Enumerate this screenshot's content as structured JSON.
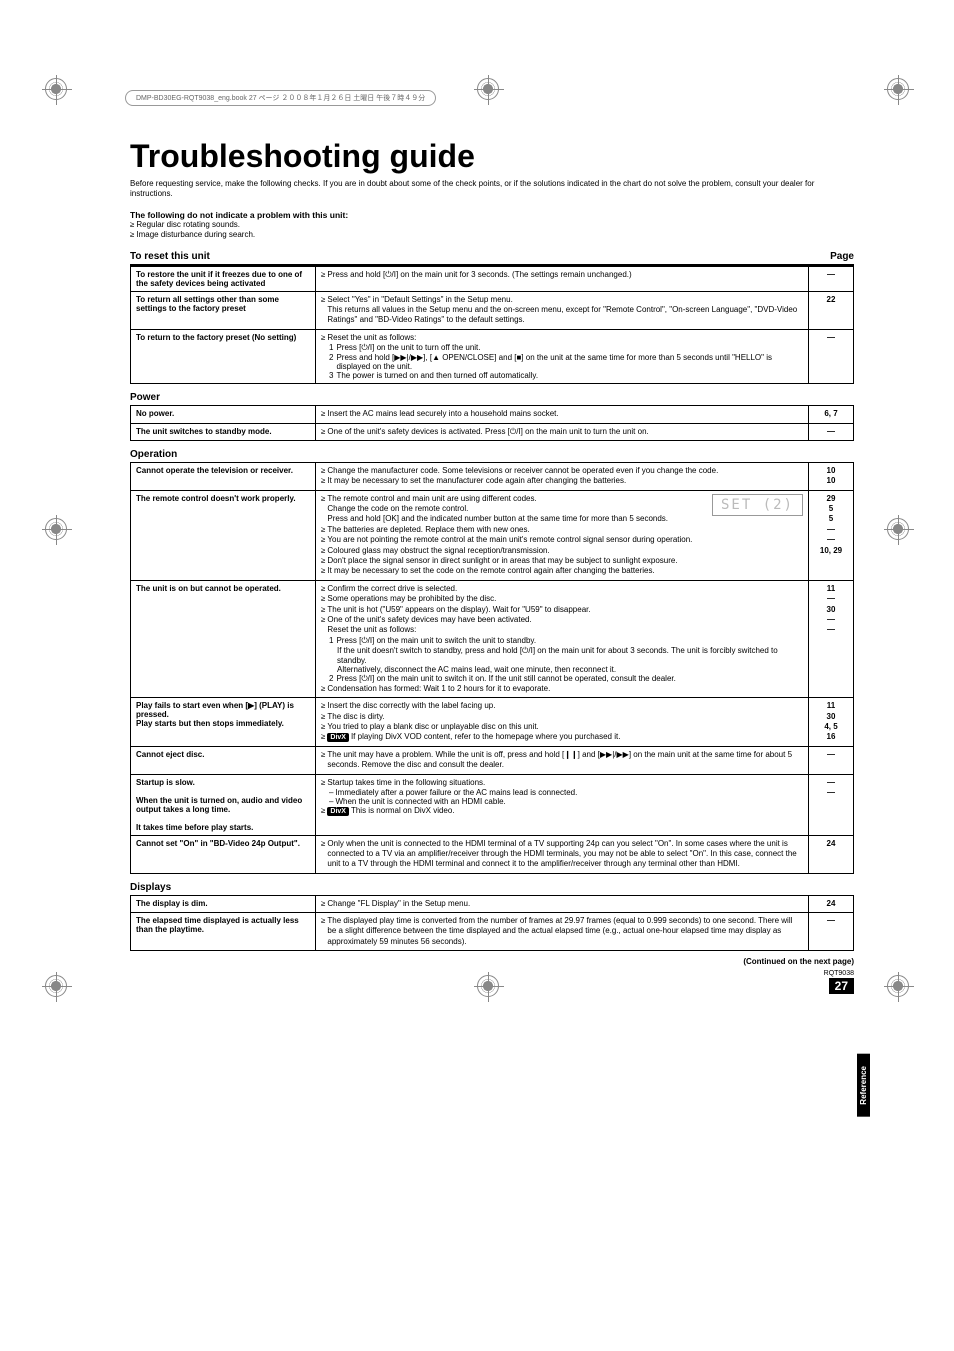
{
  "book_header": "DMP-BD30EG-RQT9038_eng.book 27 ページ ２００８年１月２６日 土曜日 午後７時４９分",
  "title": "Troubleshooting guide",
  "intro": "Before requesting service, make the following checks. If you are in doubt about some of the check points, or if the solutions indicated in the chart do not solve the problem, consult your dealer for instructions.",
  "sub_heading": "The following do not indicate a problem with this unit:",
  "sub_items": [
    "Regular disc rotating sounds.",
    "Image disturbance during search."
  ],
  "section_reset": {
    "title": "To reset this unit",
    "page_label": "Page"
  },
  "reset_rows": [
    {
      "label": "To restore the unit if it freezes due to one of the safety devices being activated",
      "content": [
        {
          "type": "bullet",
          "text": "Press and hold [⏻/I] on the main unit for 3 seconds. (The settings remain unchanged.)"
        }
      ],
      "pages": [
        "—"
      ]
    },
    {
      "label": "To return all settings other than some settings to the factory preset",
      "content": [
        {
          "type": "bullet",
          "text": "Select \"Yes\" in \"Default Settings\" in the Setup menu.\nThis returns all values in the Setup menu and the on-screen menu, except for \"Remote Control\", \"On-screen Language\", \"DVD-Video Ratings\" and \"BD-Video Ratings\" to the default settings."
        }
      ],
      "pages": [
        "22"
      ]
    },
    {
      "label": "To return to the factory preset (No setting)",
      "content": [
        {
          "type": "bullet",
          "text": "Reset the unit as follows:"
        },
        {
          "type": "num",
          "n": "1",
          "text": "Press [⏻/I] on the unit to turn off the unit."
        },
        {
          "type": "num",
          "n": "2",
          "text": "Press and hold [▶▶|/▶▶], [▲ OPEN/CLOSE] and [■] on the unit at the same time for more than 5 seconds until \"HELLO\" is displayed on the unit."
        },
        {
          "type": "num",
          "n": "3",
          "text": "The power is turned on and then turned off automatically."
        }
      ],
      "pages": [
        "—"
      ]
    }
  ],
  "section_power": "Power",
  "power_rows": [
    {
      "label": "No power.",
      "content": [
        {
          "type": "bullet",
          "text": "Insert the AC mains lead securely into a household mains socket."
        }
      ],
      "pages": [
        "6, 7"
      ]
    },
    {
      "label": "The unit switches to standby mode.",
      "content": [
        {
          "type": "bullet",
          "text": "One of the unit's safety devices is activated. Press [⏻/I] on the main unit to turn the unit on."
        }
      ],
      "pages": [
        "—"
      ]
    }
  ],
  "section_operation": "Operation",
  "op_rows": [
    {
      "label": "Cannot operate the television or receiver.",
      "content": [
        {
          "type": "bullet",
          "text": "Change the manufacturer code. Some televisions or receiver cannot be operated even if you change the code."
        },
        {
          "type": "bullet",
          "text": "It may be necessary to set the manufacturer code again after changing the batteries."
        }
      ],
      "pages": [
        "10",
        "10"
      ]
    },
    {
      "label": "The remote control doesn't work properly.",
      "set_display": "SET (2)",
      "content": [
        {
          "type": "bullet",
          "text": "The remote control and main unit are using different codes.\nChange the code on the remote control.\nPress and hold [OK] and the indicated number button at the same time for more than 5 seconds."
        },
        {
          "type": "bullet",
          "text": "The batteries are depleted. Replace them with new ones."
        },
        {
          "type": "bullet",
          "text": "You are not pointing the remote control at the main unit's remote control signal sensor during operation."
        },
        {
          "type": "bullet",
          "text": "Coloured glass may obstruct the signal reception/transmission."
        },
        {
          "type": "bullet",
          "text": "Don't place the signal sensor in direct sunlight or in areas that may be subject to sunlight exposure."
        },
        {
          "type": "bullet",
          "text": "It may be necessary to set the code on the remote control again after changing the batteries."
        }
      ],
      "pages": [
        "29",
        "5",
        "5",
        "—",
        "—",
        "10, 29"
      ]
    },
    {
      "label": "The unit is on but cannot be operated.",
      "content": [
        {
          "type": "bullet",
          "text": "Confirm the correct drive is selected."
        },
        {
          "type": "bullet",
          "text": "Some operations may be prohibited by the disc."
        },
        {
          "type": "bullet",
          "text": "The unit is hot (\"U59\" appears on the display). Wait for \"U59\" to disappear."
        },
        {
          "type": "bullet",
          "text": "One of the unit's safety devices may have been activated.\nReset the unit as follows:"
        },
        {
          "type": "num",
          "n": "1",
          "text": "Press [⏻/I] on the main unit to switch the unit to standby."
        },
        {
          "type": "indent",
          "text": "If the unit doesn't switch to standby, press and hold [⏻/I] on the main unit for about 3 seconds. The unit is forcibly switched to standby."
        },
        {
          "type": "indent",
          "text": "Alternatively, disconnect the AC mains lead, wait one minute, then reconnect it."
        },
        {
          "type": "num",
          "n": "2",
          "text": "Press [⏻/I] on the main unit to switch it on. If the unit still cannot be operated, consult the dealer."
        },
        {
          "type": "bullet",
          "text": "Condensation has formed: Wait 1 to 2 hours for it to evaporate."
        }
      ],
      "pages": [
        "11",
        "—",
        "30",
        "—",
        "",
        "",
        "",
        "",
        "—"
      ]
    },
    {
      "label": "Play fails to start even when [▶] (PLAY) is pressed.\nPlay starts but then stops immediately.",
      "content": [
        {
          "type": "bullet",
          "text": "Insert the disc correctly with the label facing up."
        },
        {
          "type": "bullet",
          "text": "The disc is dirty."
        },
        {
          "type": "bullet",
          "text": "You tried to play a blank disc or unplayable disc on this unit."
        },
        {
          "type": "divx",
          "text": "If playing DivX VOD content, refer to the homepage where you purchased it."
        }
      ],
      "pages": [
        "11",
        "30",
        "4, 5",
        "16"
      ]
    },
    {
      "label": "Cannot eject disc.",
      "content": [
        {
          "type": "bullet",
          "text": "The unit may have a problem. While the unit is off, press and hold [❙❙] and [▶▶|/▶▶] on the main unit at the same time for about 5 seconds. Remove the disc and consult the dealer."
        }
      ],
      "pages": [
        "—"
      ]
    },
    {
      "label": "Startup is slow.\n\nWhen the unit is turned on, audio and video output takes a long time.\n\nIt takes time before play starts.",
      "content": [
        {
          "type": "bullet",
          "text": "Startup takes time in the following situations."
        },
        {
          "type": "dash",
          "text": "Immediately after a power failure or the AC mains lead is connected."
        },
        {
          "type": "dash",
          "text": "When the unit is connected with an HDMI cable."
        },
        {
          "type": "divx",
          "text": "This is normal on DivX video."
        }
      ],
      "pages": [
        "—",
        "",
        "",
        "—"
      ]
    },
    {
      "label": "Cannot set \"On\" in \"BD-Video 24p Output\".",
      "content": [
        {
          "type": "bullet",
          "text": "Only when the unit is connected to the HDMI terminal of a TV supporting 24p can you select \"On\". In some cases where the unit is connected to a TV via an amplifier/receiver through the HDMI terminals, you may not be able to select \"On\". In this case, connect the unit to a TV through the HDMI terminal and connect it to the amplifier/receiver through any terminal other than HDMI."
        }
      ],
      "pages": [
        "24"
      ]
    }
  ],
  "section_displays": "Displays",
  "display_rows": [
    {
      "label": "The display is dim.",
      "content": [
        {
          "type": "bullet",
          "text": "Change \"FL Display\" in the Setup menu."
        }
      ],
      "pages": [
        "24"
      ]
    },
    {
      "label": "The elapsed time displayed is actually less than the playtime.",
      "content": [
        {
          "type": "bullet",
          "text": "The displayed play time is converted from the number of frames at 29.97 frames (equal to 0.999 seconds) to one second. There will be a slight difference between the time displayed and the actual elapsed time (e.g., actual one-hour elapsed time may display as approximately 59 minutes 56 seconds)."
        }
      ],
      "pages": [
        "—"
      ]
    }
  ],
  "continued": "(Continued on the next page)",
  "footer_code": "RQT9038",
  "page_number": "27",
  "side_tab": "Reference"
}
